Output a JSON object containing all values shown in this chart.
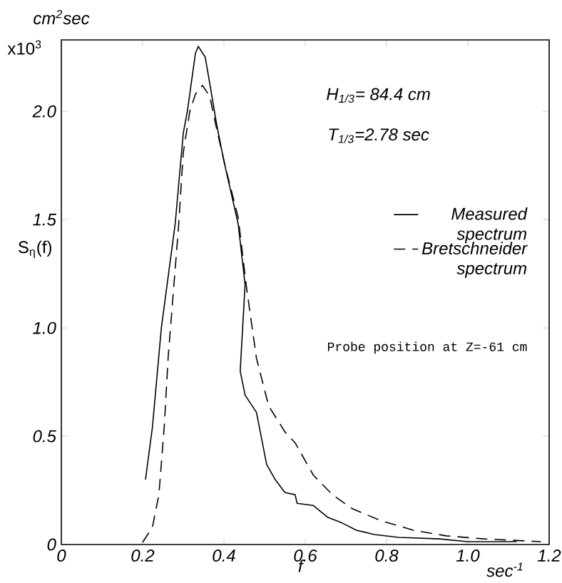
{
  "chart_data": {
    "type": "line",
    "xlabel": "f",
    "ylabel": "S$_{η}$(f)",
    "xlim": [
      0,
      1.2
    ],
    "ylim": [
      0,
      2.33
    ],
    "xticks": [
      0,
      0.2,
      0.4,
      0.6,
      0.8,
      {
        "value": 1,
        "label": "1.0"
      },
      1.2
    ],
    "yticks": [
      0,
      0.5,
      {
        "value": 1,
        "label": "1.0"
      },
      1.5,
      {
        "value": 2,
        "label": "2.0"
      }
    ],
    "legend": "right",
    "series": [
      {
        "name": "Measured spectrum",
        "color": "#000000",
        "line_style": "solid",
        "x": [
          0.207,
          0.224,
          0.246,
          0.28,
          0.3,
          0.31,
          0.33,
          0.337,
          0.354,
          0.365,
          0.382,
          0.4,
          0.435,
          0.452,
          0.44,
          0.452,
          0.48,
          0.505,
          0.526,
          0.55,
          0.575,
          0.58,
          0.62,
          0.656,
          0.69,
          0.726,
          0.77,
          0.83,
          0.93,
          1.0,
          1.12
        ],
        "values": [
          0.3,
          0.54,
          1.0,
          1.48,
          1.9,
          2.0,
          2.27,
          2.3,
          2.25,
          2.13,
          1.94,
          1.77,
          1.48,
          1.2,
          0.8,
          0.69,
          0.61,
          0.37,
          0.3,
          0.24,
          0.23,
          0.19,
          0.18,
          0.125,
          0.1,
          0.066,
          0.046,
          0.033,
          0.026,
          0.013,
          0.013
        ]
      },
      {
        "name": "Bretschneider spectrum",
        "color": "#000000",
        "line_style": "dashed",
        "x": [
          0.2,
          0.224,
          0.24,
          0.253,
          0.263,
          0.277,
          0.288,
          0.3,
          0.316,
          0.33,
          0.347,
          0.365,
          0.382,
          0.404,
          0.435,
          0.456,
          0.48,
          0.51,
          0.55,
          0.575,
          0.62,
          0.667,
          0.716,
          0.786,
          0.866,
          0.947,
          1.04,
          1.18
        ],
        "values": [
          0.01,
          0.08,
          0.23,
          0.54,
          0.87,
          1.2,
          1.46,
          1.81,
          2.0,
          2.08,
          2.12,
          2.07,
          1.92,
          1.74,
          1.51,
          1.18,
          0.86,
          0.64,
          0.52,
          0.47,
          0.32,
          0.23,
          0.165,
          0.11,
          0.066,
          0.04,
          0.026,
          0.013
        ]
      }
    ],
    "annotations": [
      "cm$^{2}$sec",
      "x10$^{3}$",
      "H$_{1/3}$= 84.4 cm",
      "T$_{1/3}$=2.78 sec",
      "Probe position at Z=-61 cm",
      "sec$^{-1}$"
    ]
  }
}
